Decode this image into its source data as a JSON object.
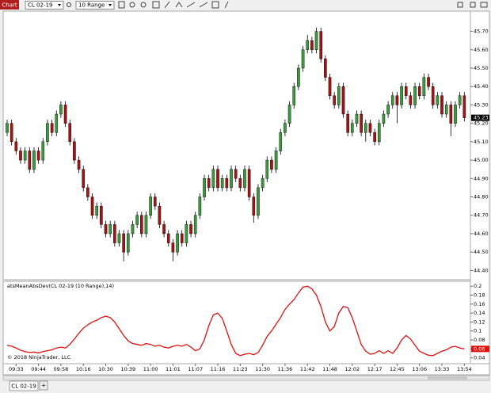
{
  "toolbar": {
    "tab": "Chart",
    "instrument": "CL 02-19",
    "bar_type": "10 Range"
  },
  "tabs": {
    "active": "CL 02-19",
    "add": "+"
  },
  "copyright": "© 2018 NinjaTrader, LLC",
  "chart_data": [
    {
      "type": "candlestick",
      "categories": [
        null,
        null,
        "09:33",
        null,
        null,
        null,
        null,
        "09:44",
        null,
        null,
        null,
        null,
        "09:58",
        null,
        null,
        null,
        null,
        "10:16",
        null,
        null,
        null,
        null,
        "10:30",
        null,
        null,
        null,
        null,
        "10:39",
        null,
        null,
        null,
        null,
        "11:00",
        null,
        null,
        null,
        null,
        "11:01",
        null,
        null,
        null,
        null,
        "11:07",
        null,
        null,
        null,
        null,
        "11:16",
        null,
        null,
        null,
        null,
        "11:23",
        null,
        null,
        null,
        null,
        "11:30",
        null,
        null,
        null,
        null,
        "11:36",
        null,
        null,
        null,
        null,
        "11:42",
        null,
        null,
        null,
        null,
        "11:48",
        null,
        null,
        null,
        null,
        "12:02",
        null,
        null,
        null,
        null,
        "12:17",
        null,
        null,
        null,
        null,
        "12:45",
        null,
        null,
        null,
        null,
        "13:06",
        null,
        null,
        null,
        null,
        "13:33",
        null,
        null,
        null,
        null,
        "13:54"
      ],
      "open": [
        45.15,
        45.2,
        45.1,
        45.05,
        45.0,
        45.05,
        44.95,
        45.05,
        45.0,
        45.1,
        45.2,
        45.15,
        45.25,
        45.3,
        45.2,
        45.1,
        45.0,
        44.95,
        44.85,
        44.8,
        44.7,
        44.75,
        44.65,
        44.6,
        44.65,
        44.55,
        44.6,
        44.5,
        44.6,
        44.65,
        44.7,
        44.6,
        44.7,
        44.8,
        44.75,
        44.65,
        44.6,
        44.55,
        44.5,
        44.6,
        44.55,
        44.65,
        44.6,
        44.7,
        44.8,
        44.9,
        44.85,
        44.95,
        44.85,
        44.9,
        44.85,
        44.95,
        44.9,
        44.85,
        44.95,
        44.8,
        44.7,
        44.85,
        44.9,
        45.0,
        44.95,
        45.05,
        45.15,
        45.2,
        45.3,
        45.4,
        45.5,
        45.6,
        45.65,
        45.6,
        45.7,
        45.55,
        45.45,
        45.35,
        45.3,
        45.4,
        45.25,
        45.15,
        45.2,
        45.25,
        45.15,
        45.2,
        45.15,
        45.1,
        45.2,
        45.25,
        45.3,
        45.35,
        45.3,
        45.4,
        45.35,
        45.3,
        45.4,
        45.35,
        45.45,
        45.4,
        45.3,
        45.35,
        45.25,
        45.3,
        45.2,
        45.3,
        45.35
      ],
      "high": [
        45.22,
        45.22,
        45.12,
        45.07,
        45.07,
        45.07,
        45.07,
        45.07,
        45.12,
        45.22,
        45.22,
        45.27,
        45.32,
        45.32,
        45.22,
        45.12,
        45.02,
        44.97,
        44.87,
        44.82,
        44.77,
        44.77,
        44.67,
        44.67,
        44.67,
        44.62,
        44.62,
        44.62,
        44.67,
        44.72,
        44.72,
        44.72,
        44.82,
        44.82,
        44.77,
        44.67,
        44.62,
        44.57,
        44.62,
        44.62,
        44.67,
        44.67,
        44.72,
        44.82,
        44.92,
        44.92,
        44.97,
        44.97,
        44.92,
        44.92,
        44.97,
        44.97,
        44.92,
        44.97,
        44.97,
        44.82,
        44.87,
        44.92,
        45.02,
        45.02,
        45.07,
        45.17,
        45.22,
        45.32,
        45.42,
        45.52,
        45.62,
        45.68,
        45.67,
        45.72,
        45.72,
        45.57,
        45.47,
        45.37,
        45.42,
        45.42,
        45.27,
        45.22,
        45.27,
        45.27,
        45.22,
        45.22,
        45.17,
        45.22,
        45.27,
        45.32,
        45.37,
        45.37,
        45.42,
        45.42,
        45.37,
        45.42,
        45.42,
        45.47,
        45.47,
        45.42,
        45.37,
        45.37,
        45.32,
        45.32,
        45.32,
        45.37,
        45.37
      ],
      "low": [
        45.13,
        45.08,
        45.03,
        44.98,
        44.98,
        44.93,
        44.93,
        44.98,
        44.98,
        45.08,
        45.13,
        45.13,
        45.23,
        45.18,
        45.08,
        44.98,
        44.93,
        44.83,
        44.78,
        44.68,
        44.68,
        44.63,
        44.58,
        44.58,
        44.53,
        44.53,
        44.45,
        44.48,
        44.58,
        44.63,
        44.58,
        44.58,
        44.68,
        44.73,
        44.63,
        44.58,
        44.53,
        44.45,
        44.48,
        44.53,
        44.53,
        44.58,
        44.58,
        44.68,
        44.78,
        44.83,
        44.83,
        44.83,
        44.83,
        44.83,
        44.83,
        44.88,
        44.83,
        44.83,
        44.78,
        44.66,
        44.68,
        44.83,
        44.88,
        44.93,
        44.93,
        45.03,
        45.13,
        45.18,
        45.28,
        45.38,
        45.48,
        45.58,
        45.58,
        45.58,
        45.53,
        45.43,
        45.33,
        45.28,
        45.28,
        45.23,
        45.13,
        45.13,
        45.18,
        45.13,
        45.1,
        45.13,
        45.08,
        45.08,
        45.18,
        45.23,
        45.28,
        45.2,
        45.28,
        45.33,
        45.28,
        45.28,
        45.33,
        45.33,
        45.38,
        45.28,
        45.28,
        45.23,
        45.23,
        45.13,
        45.18,
        45.28,
        45.21
      ],
      "close": [
        45.2,
        45.1,
        45.05,
        45.0,
        45.05,
        44.95,
        45.05,
        45.0,
        45.1,
        45.2,
        45.15,
        45.25,
        45.3,
        45.2,
        45.1,
        45.0,
        44.95,
        44.85,
        44.8,
        44.7,
        44.75,
        44.65,
        44.6,
        44.65,
        44.55,
        44.6,
        44.5,
        44.6,
        44.65,
        44.7,
        44.6,
        44.7,
        44.8,
        44.75,
        44.65,
        44.6,
        44.55,
        44.5,
        44.6,
        44.55,
        44.65,
        44.6,
        44.7,
        44.8,
        44.9,
        44.85,
        44.95,
        44.85,
        44.9,
        44.85,
        44.95,
        44.9,
        44.85,
        44.95,
        44.8,
        44.7,
        44.85,
        44.9,
        45.0,
        44.95,
        45.05,
        45.15,
        45.2,
        45.3,
        45.4,
        45.5,
        45.6,
        45.65,
        45.6,
        45.7,
        45.55,
        45.45,
        45.35,
        45.3,
        45.4,
        45.25,
        45.15,
        45.2,
        45.25,
        45.15,
        45.2,
        45.15,
        45.1,
        45.2,
        45.25,
        45.3,
        45.35,
        45.3,
        45.4,
        45.35,
        45.3,
        45.4,
        45.35,
        45.45,
        45.4,
        45.3,
        45.35,
        45.25,
        45.3,
        45.2,
        45.3,
        45.35,
        45.23
      ],
      "up_color": "#3c9a3c",
      "down_color": "#a31414",
      "ylim": [
        44.35,
        45.81
      ],
      "yticks": [
        {
          "value": 44.4,
          "label": "44.40"
        },
        {
          "value": 44.5,
          "label": "44.50"
        },
        {
          "value": 44.6,
          "label": "44.60"
        },
        {
          "value": 44.7,
          "label": "44.70"
        },
        {
          "value": 44.8,
          "label": "44.80"
        },
        {
          "value": 44.9,
          "label": "44.90"
        },
        {
          "value": 45.0,
          "label": "45.00"
        },
        {
          "value": 45.1,
          "label": "45.10"
        },
        {
          "value": 45.2,
          "label": "45.20"
        },
        {
          "value": 45.3,
          "label": "45.30"
        },
        {
          "value": 45.4,
          "label": "45.40"
        },
        {
          "value": 45.5,
          "label": "45.50"
        },
        {
          "value": 45.6,
          "label": "45.60"
        },
        {
          "value": 45.7,
          "label": "45.70"
        }
      ],
      "grid": false
    },
    {
      "type": "line",
      "title": "atsMeanAbsDev(CL 02-19 (10 Range),14)",
      "color": "#e01010",
      "values": [
        0.068,
        0.066,
        0.062,
        0.057,
        0.054,
        0.052,
        0.053,
        0.051,
        0.054,
        0.056,
        0.058,
        0.062,
        0.064,
        0.062,
        0.07,
        0.082,
        0.095,
        0.106,
        0.114,
        0.12,
        0.124,
        0.13,
        0.133,
        0.13,
        0.12,
        0.105,
        0.09,
        0.078,
        0.072,
        0.07,
        0.068,
        0.072,
        0.07,
        0.066,
        0.068,
        0.064,
        0.062,
        0.066,
        0.068,
        0.066,
        0.07,
        0.064,
        0.056,
        0.06,
        0.08,
        0.112,
        0.136,
        0.14,
        0.128,
        0.1,
        0.07,
        0.05,
        0.045,
        0.048,
        0.05,
        0.047,
        0.052,
        0.068,
        0.088,
        0.1,
        0.115,
        0.13,
        0.148,
        0.16,
        0.17,
        0.185,
        0.198,
        0.2,
        0.194,
        0.18,
        0.155,
        0.12,
        0.1,
        0.11,
        0.14,
        0.155,
        0.152,
        0.13,
        0.1,
        0.07,
        0.055,
        0.048,
        0.05,
        0.056,
        0.05,
        0.056,
        0.05,
        0.062,
        0.08,
        0.09,
        0.082,
        0.068,
        0.055,
        0.05,
        0.046,
        0.045,
        0.05,
        0.055,
        0.058,
        0.064,
        0.066,
        0.062,
        0.06
      ],
      "ylim": [
        0.027,
        0.211
      ],
      "yticks": [
        0.04,
        0.06,
        0.08,
        0.1,
        0.12,
        0.14,
        0.16,
        0.18,
        0.2
      ],
      "grid": false
    }
  ]
}
